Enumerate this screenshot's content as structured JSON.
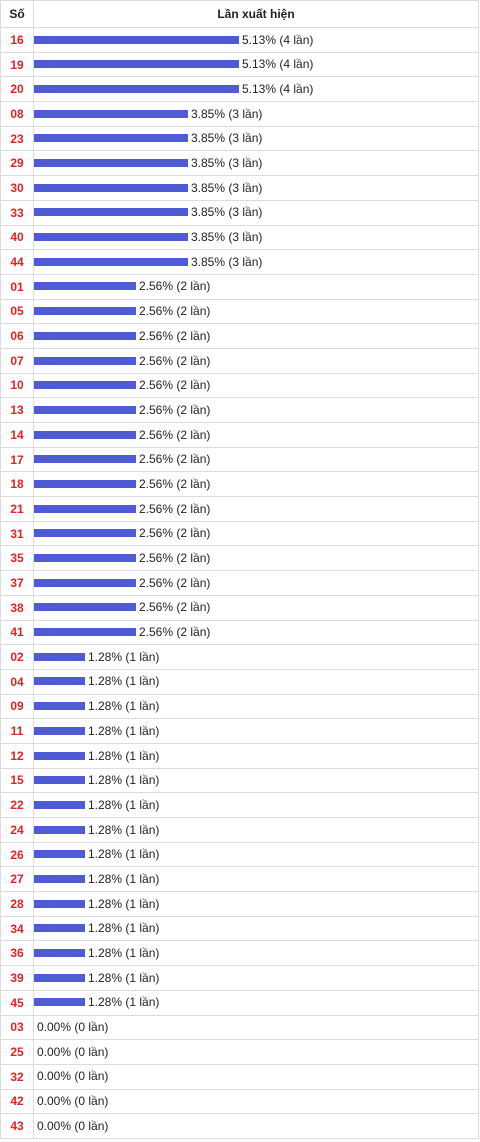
{
  "header": {
    "col_number": "Số",
    "col_frequency": "Lần xuất hiện"
  },
  "bar_color": "#4f5bd5",
  "number_color": "#e02424",
  "chart_data": {
    "type": "bar",
    "orientation": "horizontal",
    "xlim": [
      0,
      5.13
    ],
    "rows": [
      {
        "num": "16",
        "pct": 5.13,
        "label": "5.13% (4 lần)"
      },
      {
        "num": "19",
        "pct": 5.13,
        "label": "5.13% (4 lần)"
      },
      {
        "num": "20",
        "pct": 5.13,
        "label": "5.13% (4 lần)"
      },
      {
        "num": "08",
        "pct": 3.85,
        "label": "3.85% (3 lần)"
      },
      {
        "num": "23",
        "pct": 3.85,
        "label": "3.85% (3 lần)"
      },
      {
        "num": "29",
        "pct": 3.85,
        "label": "3.85% (3 lần)"
      },
      {
        "num": "30",
        "pct": 3.85,
        "label": "3.85% (3 lần)"
      },
      {
        "num": "33",
        "pct": 3.85,
        "label": "3.85% (3 lần)"
      },
      {
        "num": "40",
        "pct": 3.85,
        "label": "3.85% (3 lần)"
      },
      {
        "num": "44",
        "pct": 3.85,
        "label": "3.85% (3 lần)"
      },
      {
        "num": "01",
        "pct": 2.56,
        "label": "2.56% (2 lần)"
      },
      {
        "num": "05",
        "pct": 2.56,
        "label": "2.56% (2 lần)"
      },
      {
        "num": "06",
        "pct": 2.56,
        "label": "2.56% (2 lần)"
      },
      {
        "num": "07",
        "pct": 2.56,
        "label": "2.56% (2 lần)"
      },
      {
        "num": "10",
        "pct": 2.56,
        "label": "2.56% (2 lần)"
      },
      {
        "num": "13",
        "pct": 2.56,
        "label": "2.56% (2 lần)"
      },
      {
        "num": "14",
        "pct": 2.56,
        "label": "2.56% (2 lần)"
      },
      {
        "num": "17",
        "pct": 2.56,
        "label": "2.56% (2 lần)"
      },
      {
        "num": "18",
        "pct": 2.56,
        "label": "2.56% (2 lần)"
      },
      {
        "num": "21",
        "pct": 2.56,
        "label": "2.56% (2 lần)"
      },
      {
        "num": "31",
        "pct": 2.56,
        "label": "2.56% (2 lần)"
      },
      {
        "num": "35",
        "pct": 2.56,
        "label": "2.56% (2 lần)"
      },
      {
        "num": "37",
        "pct": 2.56,
        "label": "2.56% (2 lần)"
      },
      {
        "num": "38",
        "pct": 2.56,
        "label": "2.56% (2 lần)"
      },
      {
        "num": "41",
        "pct": 2.56,
        "label": "2.56% (2 lần)"
      },
      {
        "num": "02",
        "pct": 1.28,
        "label": "1.28% (1 lần)"
      },
      {
        "num": "04",
        "pct": 1.28,
        "label": "1.28% (1 lần)"
      },
      {
        "num": "09",
        "pct": 1.28,
        "label": "1.28% (1 lần)"
      },
      {
        "num": "11",
        "pct": 1.28,
        "label": "1.28% (1 lần)"
      },
      {
        "num": "12",
        "pct": 1.28,
        "label": "1.28% (1 lần)"
      },
      {
        "num": "15",
        "pct": 1.28,
        "label": "1.28% (1 lần)"
      },
      {
        "num": "22",
        "pct": 1.28,
        "label": "1.28% (1 lần)"
      },
      {
        "num": "24",
        "pct": 1.28,
        "label": "1.28% (1 lần)"
      },
      {
        "num": "26",
        "pct": 1.28,
        "label": "1.28% (1 lần)"
      },
      {
        "num": "27",
        "pct": 1.28,
        "label": "1.28% (1 lần)"
      },
      {
        "num": "28",
        "pct": 1.28,
        "label": "1.28% (1 lần)"
      },
      {
        "num": "34",
        "pct": 1.28,
        "label": "1.28% (1 lần)"
      },
      {
        "num": "36",
        "pct": 1.28,
        "label": "1.28% (1 lần)"
      },
      {
        "num": "39",
        "pct": 1.28,
        "label": "1.28% (1 lần)"
      },
      {
        "num": "45",
        "pct": 1.28,
        "label": "1.28% (1 lần)"
      },
      {
        "num": "03",
        "pct": 0,
        "label": "0.00% (0 lần)"
      },
      {
        "num": "25",
        "pct": 0,
        "label": "0.00% (0 lần)"
      },
      {
        "num": "32",
        "pct": 0,
        "label": "0.00% (0 lần)"
      },
      {
        "num": "42",
        "pct": 0,
        "label": "0.00% (0 lần)"
      },
      {
        "num": "43",
        "pct": 0,
        "label": "0.00% (0 lần)"
      }
    ]
  }
}
